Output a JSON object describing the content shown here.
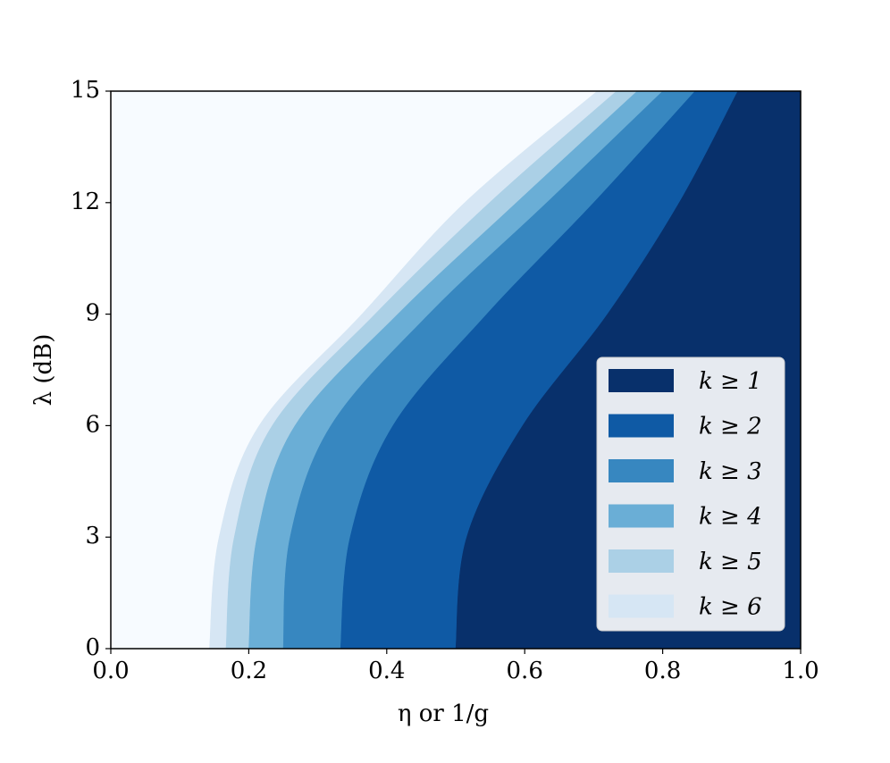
{
  "chart_data": {
    "type": "contourf",
    "x_label": "η or 1/g",
    "y_label": "λ (dB)",
    "xlim": [
      0,
      1
    ],
    "ylim": [
      0,
      15
    ],
    "xticks": [
      {
        "value": 0,
        "label": "0.0"
      },
      {
        "value": 0.2,
        "label": "0.2"
      },
      {
        "value": 0.4,
        "label": "0.4"
      },
      {
        "value": 0.6,
        "label": "0.6"
      },
      {
        "value": 0.8,
        "label": "0.8"
      },
      {
        "value": 1,
        "label": "1.0"
      }
    ],
    "yticks": [
      0,
      3,
      6,
      9,
      12,
      15
    ],
    "background_color": "#f7fbff",
    "legend": "lower right",
    "y": [
      0,
      3,
      6,
      9,
      12,
      15
    ],
    "series": [
      {
        "name": "k ≥ 1",
        "color": "#08306b",
        "values": [
          0.5,
          0.516,
          0.597,
          0.72,
          0.824,
          0.909
        ]
      },
      {
        "name": "k ≥ 2",
        "color": "#0f5aa5",
        "values": [
          0.333,
          0.347,
          0.409,
          0.545,
          0.7,
          0.847
        ]
      },
      {
        "name": "k ≥ 3",
        "color": "#3787c0",
        "values": [
          0.25,
          0.26,
          0.319,
          0.461,
          0.632,
          0.8
        ]
      },
      {
        "name": "k ≥ 4",
        "color": "#6aaed6",
        "values": [
          0.2,
          0.212,
          0.267,
          0.416,
          0.588,
          0.763
        ]
      },
      {
        "name": "k ≥ 5",
        "color": "#abd0e6",
        "values": [
          0.167,
          0.179,
          0.234,
          0.383,
          0.549,
          0.733
        ]
      },
      {
        "name": "k ≥ 6",
        "color": "#d6e6f4",
        "values": [
          0.143,
          0.157,
          0.215,
          0.364,
          0.513,
          0.705
        ]
      }
    ]
  }
}
